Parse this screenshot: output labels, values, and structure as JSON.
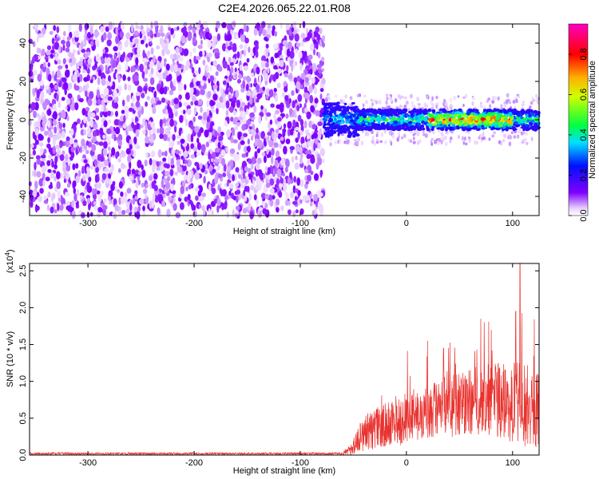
{
  "page_title": "C2E4.2026.065.22.01.R08",
  "chart_data": [
    {
      "type": "heatmap",
      "title": "C2E4.2026.065.22.01.R08",
      "xlabel": "Height of straight line (km)",
      "ylabel": "Frequency (Hz)",
      "xlim": [
        -355,
        125
      ],
      "ylim": [
        -50,
        50
      ],
      "xticks": [
        -300,
        -200,
        -100,
        0,
        100
      ],
      "xtick_labels": [
        "-300",
        "-200",
        "-100",
        "0",
        "100"
      ],
      "yticks": [
        -40,
        -20,
        0,
        20,
        40
      ],
      "ytick_labels": [
        "-40",
        "-20",
        "0",
        "20",
        "40"
      ],
      "colorbar": {
        "label": "Normalized spectral amplitude",
        "range": [
          0.0,
          0.95
        ],
        "ticks": [
          0.0,
          0.2,
          0.4,
          0.6,
          0.8
        ],
        "tick_labels": [
          "0.0",
          "0.2",
          "0.4",
          "0.6",
          "0.8"
        ]
      },
      "noise_region": {
        "x_range": [
          -355,
          -78
        ],
        "amplitude_range": [
          0.0,
          0.25
        ]
      },
      "signal_band": {
        "x_range": [
          -78,
          125
        ],
        "center_frequency_hz": 0,
        "half_width_hz": 4,
        "peak_amplitude": 0.9,
        "peak_x_range": [
          20,
          100
        ]
      },
      "grid": false
    },
    {
      "type": "line",
      "xlabel": "Height of straight line (km)",
      "ylabel": "SNR (10 * v/v)",
      "y_multiplier_label": "(x10",
      "y_multiplier_exp": "4",
      "y_multiplier_close": ")",
      "xlim": [
        -355,
        125
      ],
      "ylim": [
        0,
        2.6
      ],
      "xticks": [
        -300,
        -200,
        -100,
        0,
        100
      ],
      "xtick_labels": [
        "-300",
        "-200",
        "-100",
        "0",
        "100"
      ],
      "yticks": [
        0,
        0.5,
        1.0,
        1.5,
        2.0,
        2.5
      ],
      "ytick_labels": [
        "0.0",
        "0.5",
        "1.0",
        "1.5",
        "2.0",
        "2.5"
      ],
      "series": [
        {
          "name": "SNR",
          "color": "#e8322e",
          "envelope": [
            {
              "x": -355,
              "mean": 0.02,
              "spread": 0.015
            },
            {
              "x": -60,
              "mean": 0.02,
              "spread": 0.015
            },
            {
              "x": -50,
              "mean": 0.12,
              "spread": 0.12
            },
            {
              "x": -40,
              "mean": 0.3,
              "spread": 0.25
            },
            {
              "x": -20,
              "mean": 0.4,
              "spread": 0.3
            },
            {
              "x": 0,
              "mean": 0.5,
              "spread": 0.35
            },
            {
              "x": 25,
              "mean": 0.6,
              "spread": 0.4
            },
            {
              "x": 50,
              "mean": 0.7,
              "spread": 0.45
            },
            {
              "x": 75,
              "mean": 0.75,
              "spread": 0.5
            },
            {
              "x": 100,
              "mean": 0.7,
              "spread": 0.55
            },
            {
              "x": 110,
              "mean": 0.7,
              "spread": 0.6
            },
            {
              "x": 125,
              "mean": 0.6,
              "spread": 0.5
            }
          ],
          "peaks": [
            {
              "x": 107,
              "y": 2.6
            },
            {
              "x": 103,
              "y": 1.95
            },
            {
              "x": 70,
              "y": 1.85
            },
            {
              "x": 80,
              "y": 1.7
            },
            {
              "x": 20,
              "y": 1.55
            },
            {
              "x": 35,
              "y": 1.45
            }
          ]
        }
      ],
      "grid": false
    }
  ]
}
